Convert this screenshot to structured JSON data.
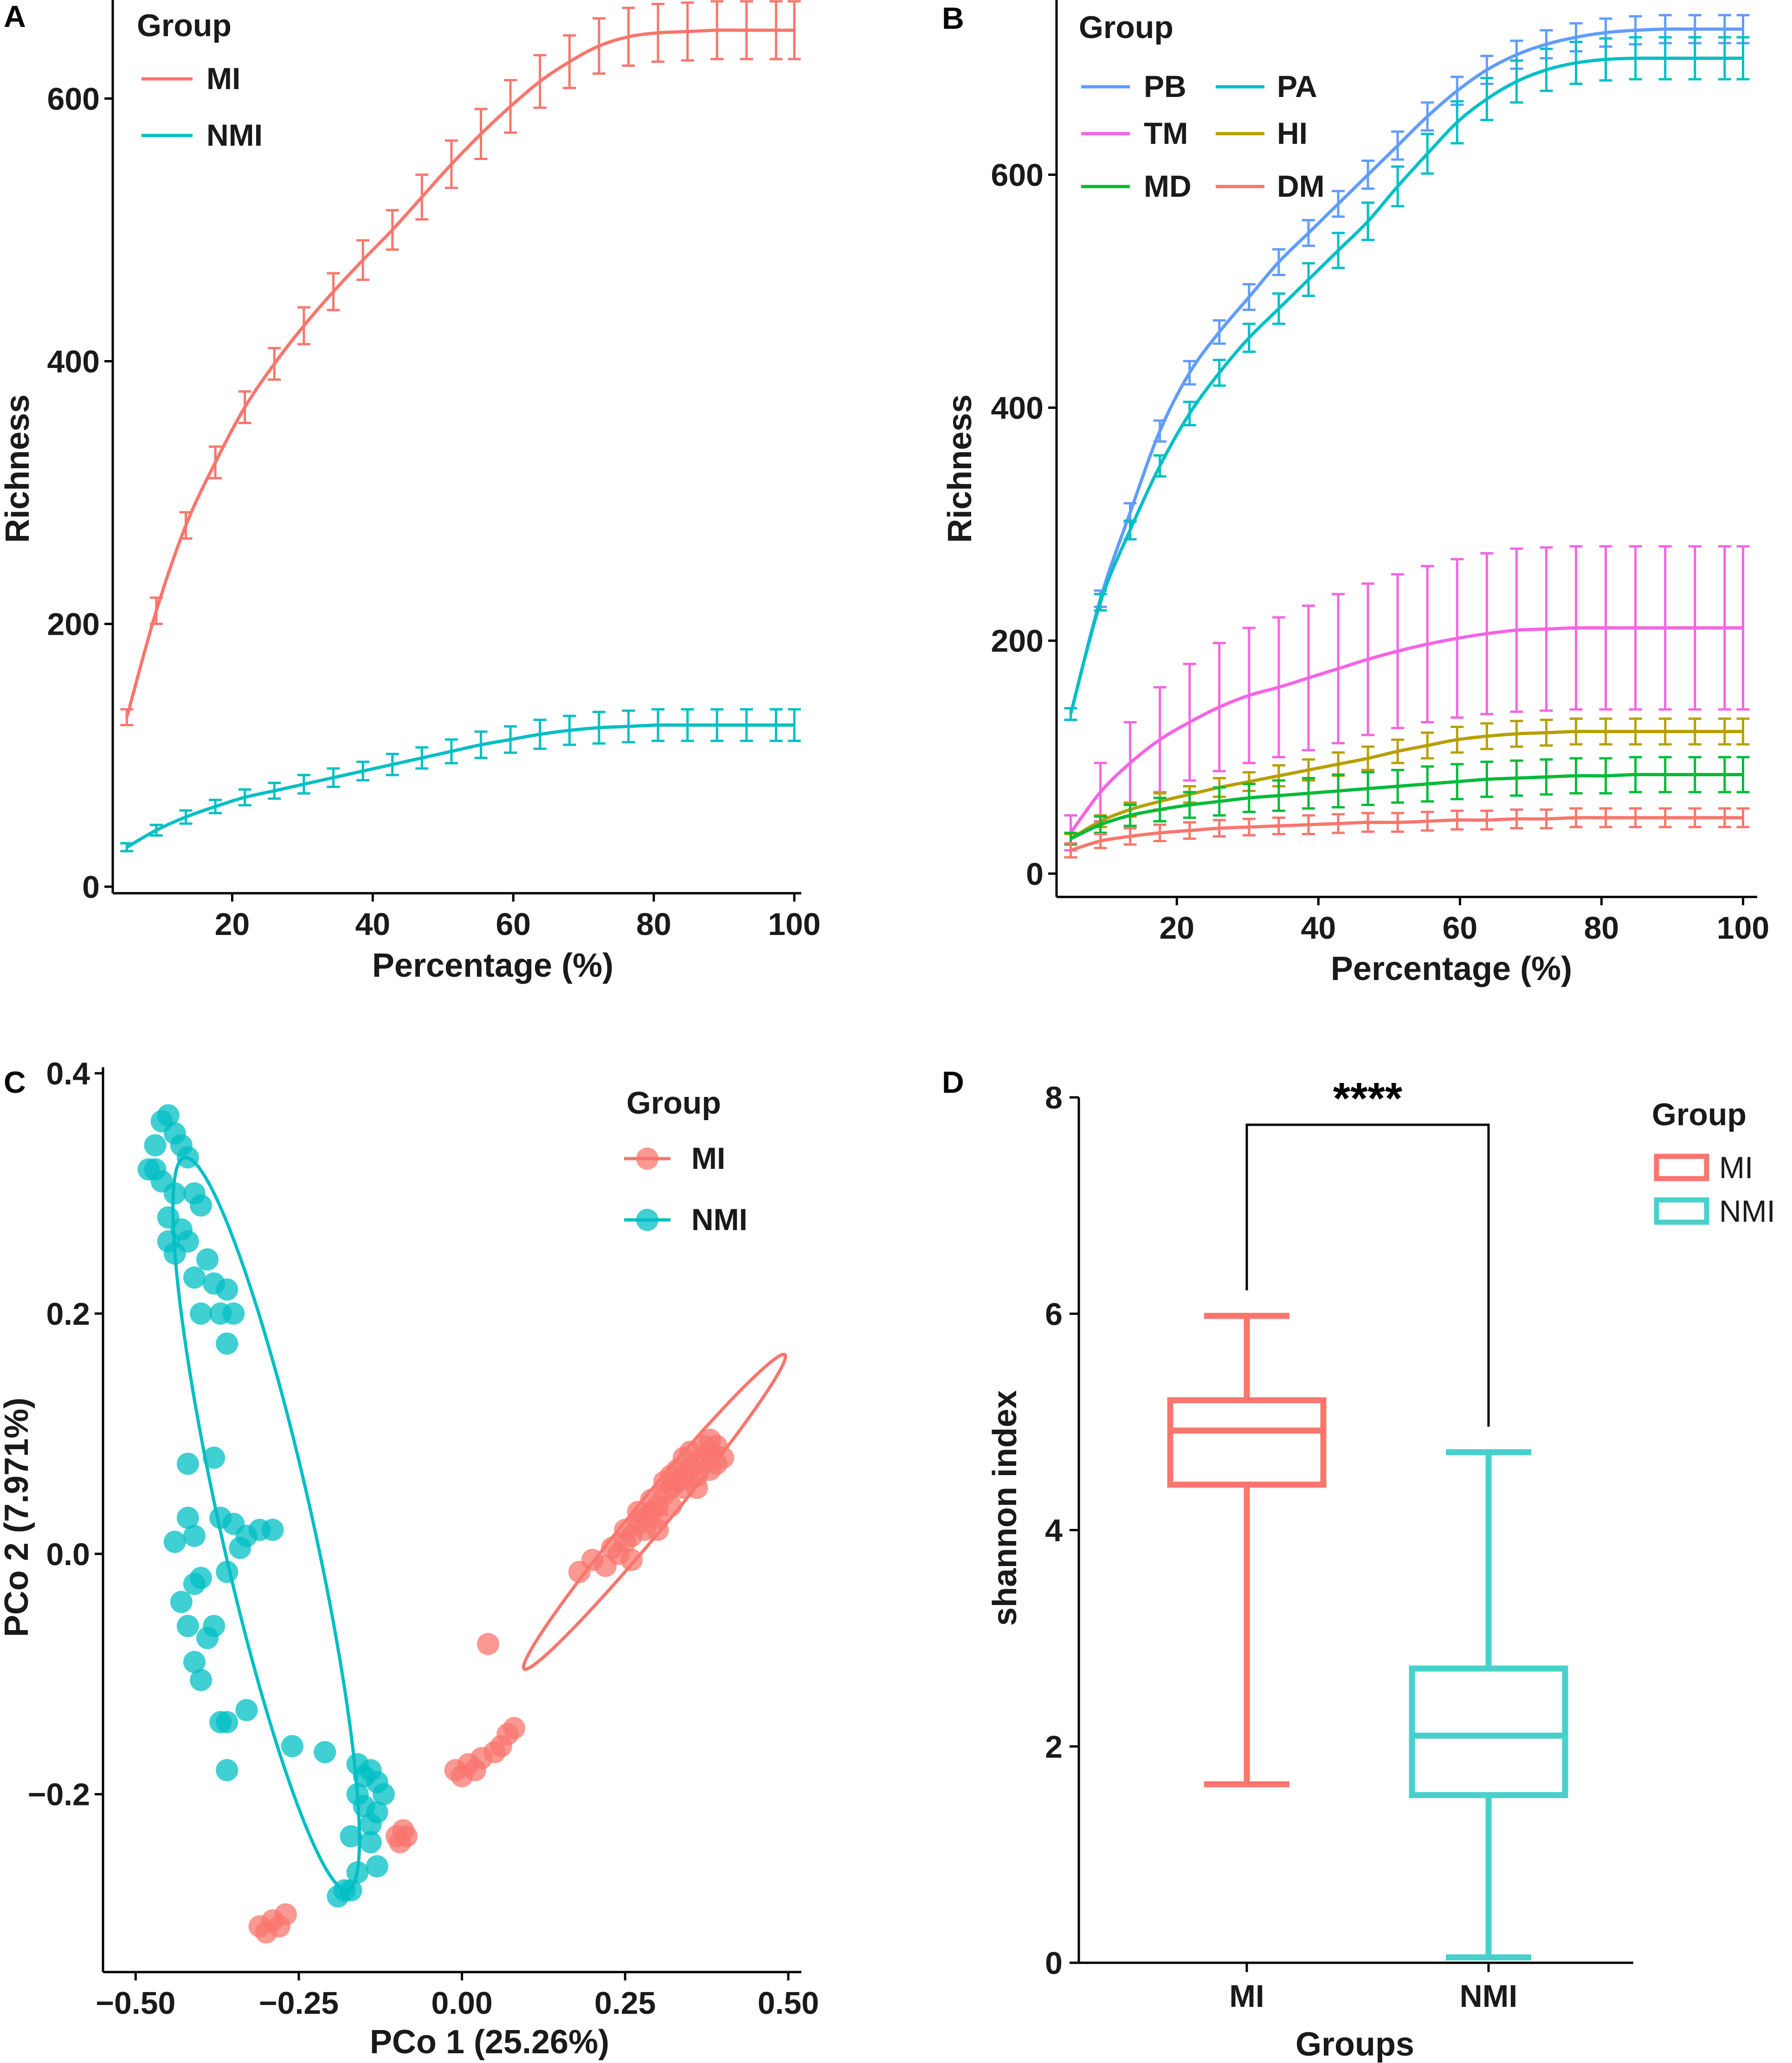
{
  "chart_data": [
    {
      "panel": "A",
      "type": "line",
      "xlabel": "Percentage (%)",
      "ylabel": "Richness",
      "xlim": [
        3,
        101
      ],
      "ylim": [
        -5,
        675
      ],
      "xticks": [
        20,
        40,
        60,
        80,
        100
      ],
      "yticks": [
        0,
        200,
        400,
        600
      ],
      "legend_title": "Group",
      "x": [
        5,
        9.2,
        13.4,
        17.6,
        21.8,
        26,
        30.2,
        34.4,
        38.6,
        42.8,
        47,
        51.2,
        55.4,
        59.6,
        63.8,
        68,
        72.2,
        76.4,
        80.6,
        84.8,
        89,
        93.2,
        97.4,
        100
      ],
      "series": [
        {
          "name": "MI",
          "color": "#F8766D",
          "values": [
            129,
            210,
            275,
            323,
            365,
            398,
            427,
            453,
            477,
            500,
            525,
            550,
            573,
            594,
            613,
            628,
            640,
            647,
            650,
            651,
            652,
            652,
            652,
            652
          ],
          "errors": [
            6,
            10,
            10,
            12,
            12,
            12,
            14,
            14,
            15,
            15,
            17,
            18,
            19,
            20,
            20,
            20,
            21,
            22,
            22,
            22,
            22,
            22,
            22,
            22
          ]
        },
        {
          "name": "NMI",
          "color": "#00BFC4",
          "values": [
            30,
            43,
            53,
            61,
            68,
            73,
            78,
            83,
            88,
            93,
            98,
            103,
            108,
            112,
            116,
            119,
            121,
            122,
            123,
            123,
            123,
            123,
            123,
            123
          ],
          "errors": [
            3,
            4,
            5,
            5,
            6,
            6,
            7,
            7,
            7,
            8,
            8,
            9,
            10,
            10,
            11,
            11,
            12,
            12,
            12,
            12,
            12,
            12,
            12,
            12
          ]
        }
      ]
    },
    {
      "panel": "B",
      "type": "line",
      "xlabel": "Percentage (%)",
      "ylabel": "Richness",
      "xlim": [
        3,
        102
      ],
      "ylim": [
        -20,
        750
      ],
      "xticks": [
        20,
        40,
        60,
        80,
        100
      ],
      "yticks": [
        0,
        200,
        400,
        600
      ],
      "legend_title": "Group",
      "x": [
        5,
        9.2,
        13.4,
        17.6,
        21.8,
        26,
        30.2,
        34.4,
        38.6,
        42.8,
        47,
        51.2,
        55.4,
        59.6,
        63.8,
        68,
        72.2,
        76.4,
        80.6,
        84.8,
        89,
        93.2,
        97.4,
        100
      ],
      "series": [
        {
          "name": "PB",
          "color": "#619CFF",
          "values": [
            137,
            236,
            310,
            380,
            430,
            465,
            495,
            525,
            550,
            575,
            600,
            625,
            650,
            672,
            690,
            703,
            712,
            718,
            722,
            724,
            725,
            725,
            725,
            725
          ],
          "errors": [
            5,
            7,
            8,
            9,
            10,
            10,
            11,
            11,
            11,
            11,
            12,
            12,
            12,
            12,
            12,
            12,
            12,
            12,
            12,
            12,
            12,
            12,
            12,
            12
          ]
        },
        {
          "name": "PA",
          "color": "#00BFC4",
          "values": [
            137,
            233,
            295,
            350,
            395,
            430,
            460,
            485,
            510,
            535,
            560,
            590,
            618,
            645,
            665,
            680,
            690,
            696,
            699,
            700,
            700,
            700,
            700,
            700
          ],
          "errors": [
            5,
            7,
            8,
            9,
            10,
            11,
            12,
            13,
            14,
            15,
            16,
            17,
            17,
            18,
            18,
            18,
            18,
            18,
            18,
            18,
            18,
            18,
            18,
            18
          ]
        },
        {
          "name": "TM",
          "color": "#F564E3",
          "values": [
            35,
            70,
            95,
            115,
            130,
            143,
            153,
            160,
            168,
            176,
            184,
            191,
            197,
            202,
            206,
            209,
            210,
            211,
            211,
            211,
            211,
            211,
            211,
            211
          ],
          "errors": [
            15,
            25,
            35,
            45,
            50,
            55,
            58,
            60,
            62,
            64,
            65,
            66,
            67,
            68,
            69,
            70,
            70,
            70,
            70,
            70,
            70,
            70,
            70,
            70
          ]
        },
        {
          "name": "HI",
          "color": "#B79F00",
          "values": [
            30,
            45,
            55,
            62,
            68,
            74,
            79,
            84,
            89,
            94,
            99,
            105,
            110,
            115,
            118,
            120,
            121,
            122,
            122,
            122,
            122,
            122,
            122,
            122
          ],
          "errors": [
            4,
            5,
            6,
            7,
            7,
            8,
            8,
            9,
            9,
            10,
            10,
            10,
            11,
            11,
            11,
            11,
            11,
            11,
            11,
            11,
            11,
            11,
            11,
            11
          ]
        },
        {
          "name": "MD",
          "color": "#00BA38",
          "values": [
            30,
            42,
            50,
            55,
            59,
            62,
            65,
            67,
            69,
            71,
            73,
            75,
            77,
            79,
            81,
            82,
            83,
            84,
            84,
            85,
            85,
            85,
            85,
            85
          ],
          "errors": [
            5,
            7,
            9,
            10,
            11,
            12,
            12,
            13,
            13,
            14,
            14,
            14,
            15,
            15,
            15,
            15,
            15,
            15,
            15,
            15,
            15,
            15,
            15,
            15
          ]
        },
        {
          "name": "DM",
          "color": "#F8766D",
          "values": [
            20,
            28,
            32,
            35,
            37,
            39,
            40,
            41,
            42,
            43,
            44,
            44,
            45,
            46,
            46,
            47,
            47,
            48,
            48,
            48,
            48,
            48,
            48,
            48
          ],
          "errors": [
            6,
            6,
            7,
            7,
            7,
            7,
            7,
            7,
            8,
            8,
            8,
            8,
            8,
            8,
            8,
            8,
            8,
            8,
            8,
            8,
            8,
            8,
            8,
            8
          ]
        }
      ]
    },
    {
      "panel": "C",
      "type": "scatter",
      "xlabel": "PCo 1 (25.26%)",
      "ylabel": "PCo 2 (7.971%)",
      "xlim": [
        -0.55,
        0.52
      ],
      "ylim": [
        -0.348,
        0.405
      ],
      "xticks": [
        -0.5,
        -0.25,
        0.0,
        0.25,
        0.5
      ],
      "xtick_labels": [
        "-0.50",
        "-0.25",
        "0.00",
        "0.25",
        "0.50"
      ],
      "yticks": [
        -0.2,
        0.0,
        0.2,
        0.4
      ],
      "ytick_labels": [
        "-0.2",
        "0.0",
        "0.2",
        "0.4"
      ],
      "legend_title": "Group",
      "series": [
        {
          "name": "MI",
          "color": "#F8766D",
          "ellipse": {
            "cx": 0.295,
            "cy": 0.035,
            "rx": 0.239,
            "ry": 0.018,
            "angle_deg": 33
          },
          "points": [
            [
              -0.31,
              -0.31
            ],
            [
              -0.3,
              -0.315
            ],
            [
              -0.29,
              -0.305
            ],
            [
              -0.28,
              -0.31
            ],
            [
              -0.27,
              -0.3
            ],
            [
              -0.1,
              -0.235
            ],
            [
              -0.095,
              -0.24
            ],
            [
              -0.09,
              -0.23
            ],
            [
              -0.085,
              -0.235
            ],
            [
              -0.01,
              -0.18
            ],
            [
              0.0,
              -0.185
            ],
            [
              0.01,
              -0.175
            ],
            [
              0.02,
              -0.18
            ],
            [
              0.03,
              -0.17
            ],
            [
              0.05,
              -0.165
            ],
            [
              0.06,
              -0.16
            ],
            [
              0.07,
              -0.15
            ],
            [
              0.08,
              -0.145
            ],
            [
              0.04,
              -0.075
            ],
            [
              0.18,
              -0.015
            ],
            [
              0.2,
              -0.005
            ],
            [
              0.22,
              -0.01
            ],
            [
              0.24,
              0.0
            ],
            [
              0.25,
              0.01
            ],
            [
              0.26,
              0.015
            ],
            [
              0.27,
              0.025
            ],
            [
              0.28,
              0.03
            ],
            [
              0.29,
              0.035
            ],
            [
              0.3,
              0.04
            ],
            [
              0.31,
              0.05
            ],
            [
              0.32,
              0.055
            ],
            [
              0.33,
              0.06
            ],
            [
              0.34,
              0.065
            ],
            [
              0.35,
              0.07
            ],
            [
              0.36,
              0.075
            ],
            [
              0.37,
              0.08
            ],
            [
              0.38,
              0.085
            ],
            [
              0.39,
              0.09
            ],
            [
              0.26,
              -0.005
            ],
            [
              0.28,
              0.02
            ],
            [
              0.3,
              0.03
            ],
            [
              0.32,
              0.04
            ],
            [
              0.34,
              0.055
            ],
            [
              0.36,
              0.065
            ],
            [
              0.38,
              0.07
            ],
            [
              0.4,
              0.08
            ],
            [
              0.27,
              0.035
            ],
            [
              0.29,
              0.045
            ],
            [
              0.31,
              0.06
            ],
            [
              0.33,
              0.07
            ],
            [
              0.35,
              0.085
            ],
            [
              0.37,
              0.09
            ],
            [
              0.25,
              0.02
            ],
            [
              0.23,
              0.005
            ],
            [
              0.3,
              0.02
            ],
            [
              0.32,
              0.065
            ],
            [
              0.34,
              0.08
            ],
            [
              0.36,
              0.055
            ],
            [
              0.38,
              0.095
            ],
            [
              0.39,
              0.075
            ]
          ]
        },
        {
          "name": "NMI",
          "color": "#00BFC4",
          "ellipse": {
            "cx": -0.3,
            "cy": 0.025,
            "rx": 0.33,
            "ry": 0.067,
            "angle_deg": -67
          },
          "points": [
            [
              -0.48,
              0.32
            ],
            [
              -0.47,
              0.34
            ],
            [
              -0.46,
              0.36
            ],
            [
              -0.45,
              0.365
            ],
            [
              -0.44,
              0.35
            ],
            [
              -0.43,
              0.34
            ],
            [
              -0.42,
              0.33
            ],
            [
              -0.46,
              0.31
            ],
            [
              -0.44,
              0.3
            ],
            [
              -0.45,
              0.28
            ],
            [
              -0.41,
              0.3
            ],
            [
              -0.4,
              0.29
            ],
            [
              -0.43,
              0.27
            ],
            [
              -0.44,
              0.25
            ],
            [
              -0.42,
              0.26
            ],
            [
              -0.39,
              0.245
            ],
            [
              -0.38,
              0.225
            ],
            [
              -0.36,
              0.22
            ],
            [
              -0.37,
              0.2
            ],
            [
              -0.35,
              0.2
            ],
            [
              -0.36,
              0.175
            ],
            [
              -0.4,
              0.2
            ],
            [
              -0.41,
              0.23
            ],
            [
              -0.45,
              0.26
            ],
            [
              -0.47,
              0.32
            ],
            [
              -0.42,
              0.075
            ],
            [
              -0.38,
              0.08
            ],
            [
              -0.37,
              0.03
            ],
            [
              -0.35,
              0.025
            ],
            [
              -0.33,
              0.015
            ],
            [
              -0.31,
              0.02
            ],
            [
              -0.29,
              0.02
            ],
            [
              -0.42,
              0.03
            ],
            [
              -0.41,
              0.015
            ],
            [
              -0.4,
              -0.02
            ],
            [
              -0.38,
              -0.06
            ],
            [
              -0.39,
              -0.07
            ],
            [
              -0.41,
              -0.09
            ],
            [
              -0.4,
              -0.105
            ],
            [
              -0.37,
              -0.14
            ],
            [
              -0.36,
              -0.14
            ],
            [
              -0.36,
              -0.18
            ],
            [
              -0.33,
              -0.13
            ],
            [
              -0.42,
              -0.06
            ],
            [
              -0.43,
              -0.04
            ],
            [
              -0.41,
              -0.025
            ],
            [
              -0.36,
              -0.015
            ],
            [
              -0.34,
              0.005
            ],
            [
              -0.44,
              0.01
            ],
            [
              -0.26,
              -0.16
            ],
            [
              -0.21,
              -0.165
            ],
            [
              -0.16,
              -0.175
            ],
            [
              -0.15,
              -0.185
            ],
            [
              -0.14,
              -0.18
            ],
            [
              -0.13,
              -0.19
            ],
            [
              -0.16,
              -0.2
            ],
            [
              -0.15,
              -0.21
            ],
            [
              -0.13,
              -0.215
            ],
            [
              -0.12,
              -0.2
            ],
            [
              -0.14,
              -0.24
            ],
            [
              -0.16,
              -0.265
            ],
            [
              -0.17,
              -0.28
            ],
            [
              -0.18,
              -0.28
            ],
            [
              -0.19,
              -0.285
            ],
            [
              -0.13,
              -0.26
            ],
            [
              -0.17,
              -0.235
            ],
            [
              -0.14,
              -0.225
            ]
          ]
        }
      ]
    },
    {
      "panel": "D",
      "type": "box",
      "xlabel": "Groups",
      "ylabel": "shannon index",
      "categories": [
        "MI",
        "NMI"
      ],
      "ylim": [
        0,
        8
      ],
      "yticks": [
        0,
        2,
        4,
        6,
        8
      ],
      "legend_title": "Group",
      "significance": "****",
      "series": [
        {
          "name": "MI",
          "color": "#F8766D",
          "min": 1.65,
          "q1": 4.42,
          "median": 4.92,
          "q3": 5.2,
          "max": 5.98
        },
        {
          "name": "NMI",
          "color": "#48D1CC",
          "min": 0.05,
          "q1": 1.55,
          "median": 2.1,
          "q3": 2.72,
          "max": 4.72
        }
      ]
    }
  ]
}
